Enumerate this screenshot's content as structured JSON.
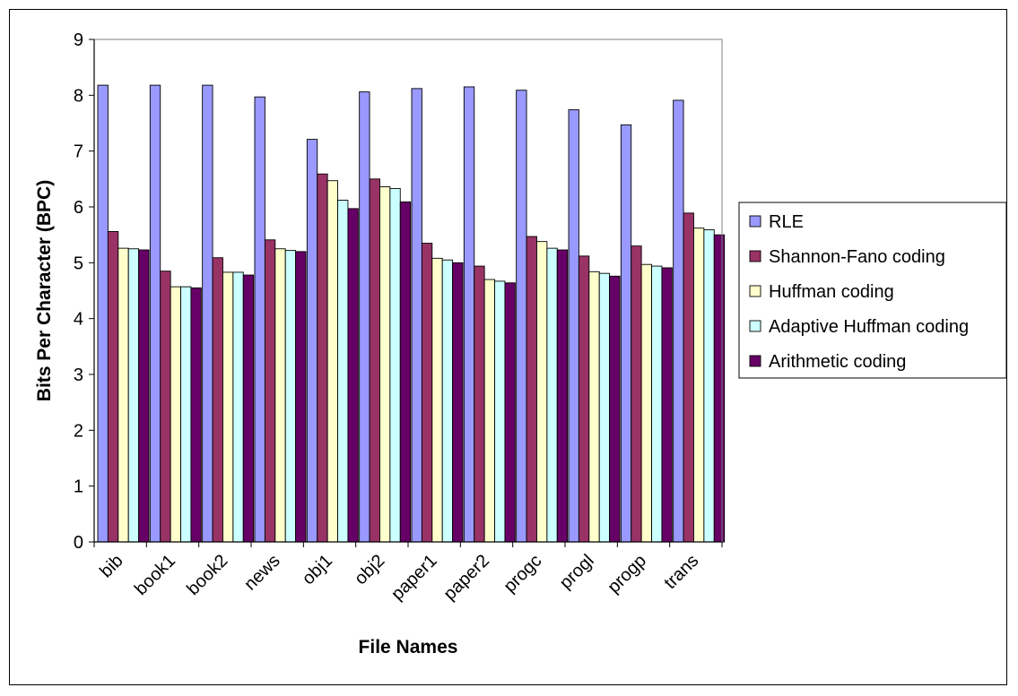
{
  "chart_data": {
    "type": "bar",
    "title": "",
    "xlabel": "File Names",
    "ylabel": "Bits Per Character (BPC)",
    "ylim": [
      0,
      9
    ],
    "yticks": [
      0,
      1,
      2,
      3,
      4,
      5,
      6,
      7,
      8,
      9
    ],
    "grid": false,
    "legend_position": "right",
    "categories": [
      "bib",
      "book1",
      "book2",
      "news",
      "obj1",
      "obj2",
      "paper1",
      "paper2",
      "progc",
      "progl",
      "progp",
      "trans"
    ],
    "series": [
      {
        "name": "RLE",
        "color": "#9999ff",
        "values": [
          8.18,
          8.18,
          8.18,
          7.97,
          7.21,
          8.06,
          8.12,
          8.15,
          8.09,
          7.74,
          7.47,
          7.91
        ]
      },
      {
        "name": "Shannon-Fano coding",
        "color": "#993366",
        "values": [
          5.56,
          4.85,
          5.09,
          5.41,
          6.59,
          6.5,
          5.35,
          4.94,
          5.47,
          5.12,
          5.3,
          5.89
        ]
      },
      {
        "name": "Huffman coding",
        "color": "#ffffcc",
        "values": [
          5.26,
          4.57,
          4.83,
          5.25,
          6.47,
          6.36,
          5.08,
          4.7,
          5.38,
          4.84,
          4.97,
          5.62
        ]
      },
      {
        "name": "Adaptive Huffman coding",
        "color": "#ccffff",
        "values": [
          5.25,
          4.57,
          4.83,
          5.22,
          6.12,
          6.33,
          5.05,
          4.67,
          5.26,
          4.81,
          4.94,
          5.59
        ]
      },
      {
        "name": "Arithmetic coding",
        "color": "#660066",
        "values": [
          5.23,
          4.55,
          4.78,
          5.2,
          5.97,
          6.09,
          5.0,
          4.64,
          5.23,
          4.76,
          4.91,
          5.5
        ]
      }
    ]
  }
}
